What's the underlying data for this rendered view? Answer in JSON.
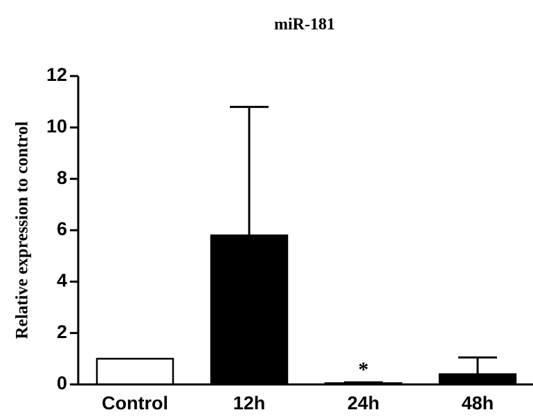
{
  "chart_data": {
    "type": "bar",
    "title": "miR-181",
    "y_label": "Relative expression to control",
    "categories": [
      "Control",
      "12h",
      "24h",
      "48h"
    ],
    "values": [
      1.0,
      5.8,
      0.05,
      0.4
    ],
    "errors": [
      null,
      5.0,
      0.03,
      0.65
    ],
    "colors": [
      "#ffffff",
      "#000000",
      "#000000",
      "#000000"
    ],
    "significance_labels": [
      null,
      null,
      "*",
      null
    ],
    "ylim": [
      0,
      12
    ],
    "yticks": [
      0,
      2,
      4,
      6,
      8,
      10,
      12
    ],
    "grid": false
  }
}
